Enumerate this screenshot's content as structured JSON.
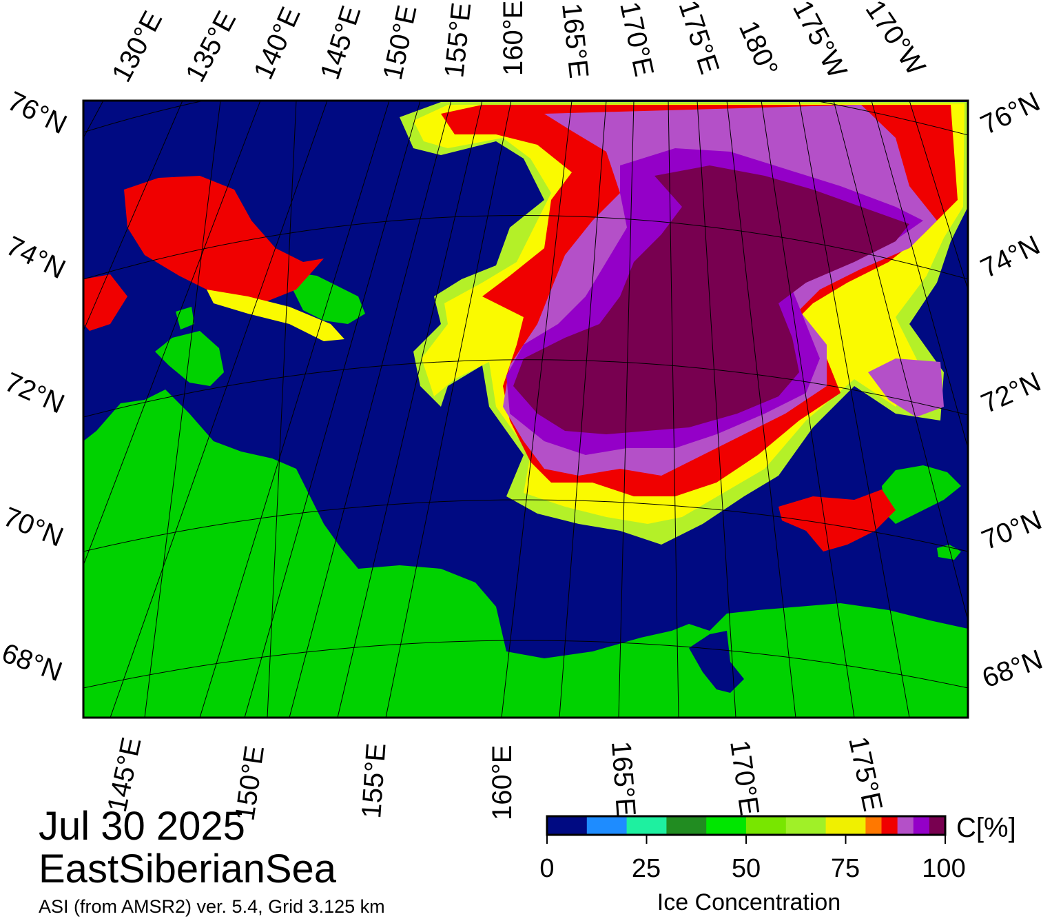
{
  "map": {
    "date": "Jul 30 2025",
    "region": "EastSiberianSea",
    "credit": "ASI (from AMSR2) ver. 5.4,  Grid 3.125 km",
    "top_lon_labels": [
      "130°E",
      "135°E",
      "140°E",
      "145°E",
      "150°E",
      "155°E",
      "160°E",
      "165°E",
      "170°E",
      "175°E",
      "180°",
      "175°W",
      "170°W"
    ],
    "bottom_lon_labels": [
      "145°E",
      "150°E",
      "155°E",
      "160°E",
      "165°E",
      "170°E",
      "175°E"
    ],
    "lat_labels": [
      "76°N",
      "74°N",
      "72°N",
      "70°N",
      "68°N"
    ],
    "colors": {
      "ocean": "#000a82",
      "land": "#00d200",
      "coast_gray": "#8c8c8c",
      "ice_high": "#780050",
      "ice_purple": "#9400c8",
      "ice_lilac": "#b450c8",
      "ice_red": "#f00000",
      "ice_orange": "#ff7800",
      "ice_yellow": "#fafa00",
      "ice_yellowgreen": "#b4f028",
      "ice_green": "#78e600"
    }
  },
  "legend": {
    "unit": "C[%]",
    "title": "Ice Concentration",
    "tick_labels": [
      "0",
      "25",
      "50",
      "75",
      "100"
    ],
    "colors": [
      "#000a82",
      "#1e8cff",
      "#1ef0a0",
      "#218c21",
      "#00e600",
      "#78e600",
      "#a0f028",
      "#f0f000",
      "#ff7800",
      "#f00000",
      "#b450c8",
      "#9400c8",
      "#780050"
    ]
  }
}
